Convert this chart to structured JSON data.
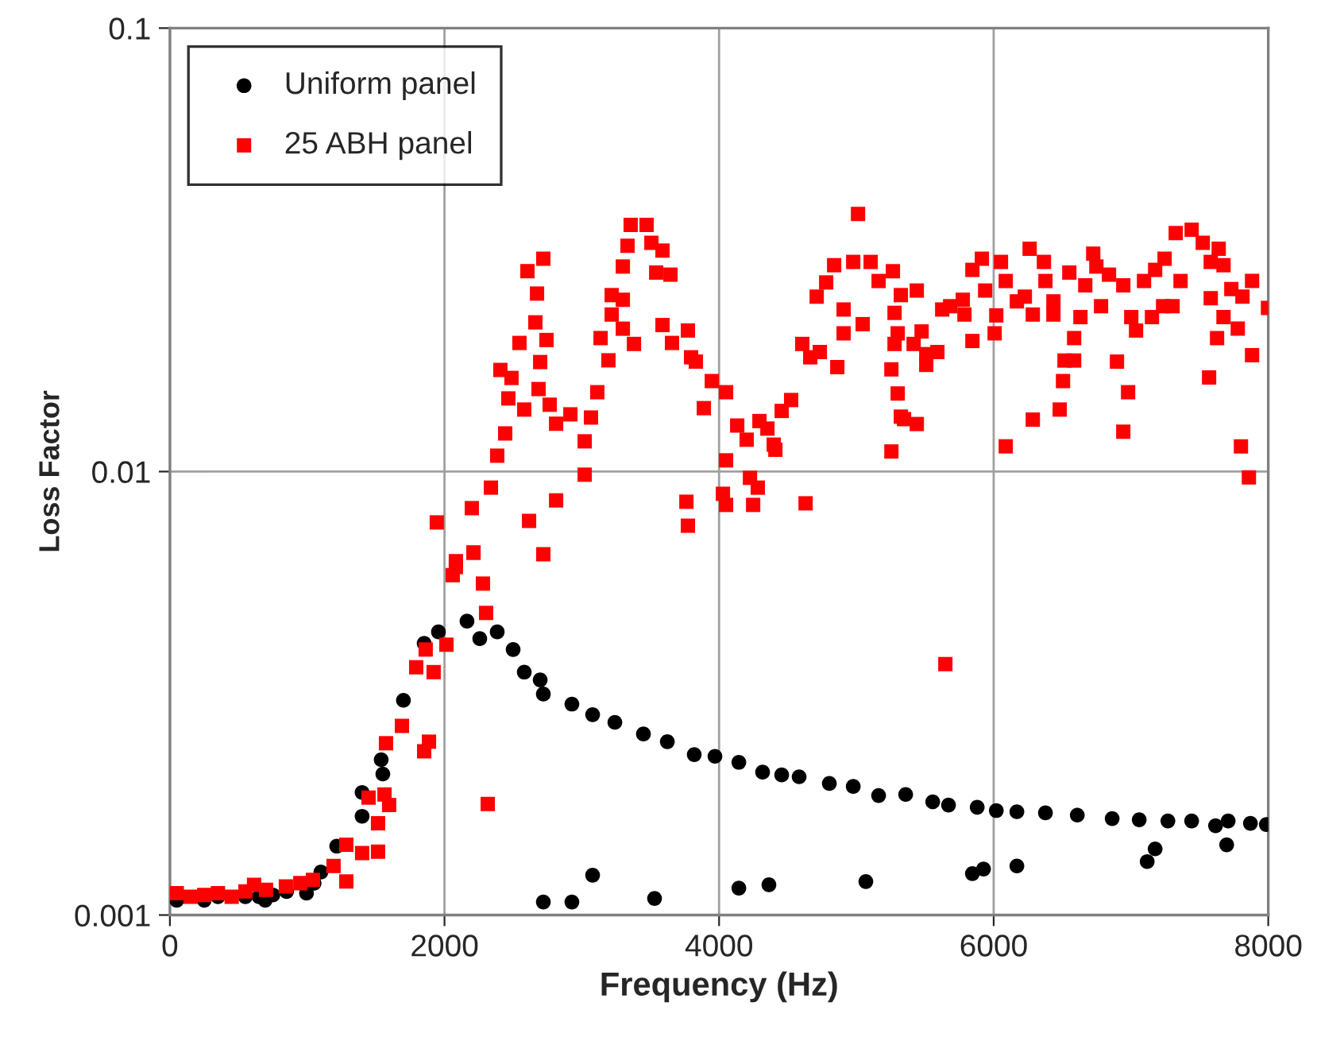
{
  "chart_data": {
    "type": "scatter",
    "xlabel": "Frequency (Hz)",
    "ylabel": "Loss Factor",
    "log": "y",
    "grid": true,
    "legend": "top left",
    "xlim": [
      0,
      8000
    ],
    "xticks": [
      0,
      2000,
      4000,
      6000,
      8000
    ],
    "ylim": [
      0.001,
      0.1
    ],
    "yticks": [
      0.001,
      0.01,
      0.1
    ],
    "series": [
      {
        "name": "Uniform panel",
        "color": "#000000",
        "marker": "circle",
        "x": [
          50,
          150,
          250,
          350,
          450,
          550,
          650,
          694,
          750,
          850,
          995,
          1050,
          1100,
          1215,
          1400,
          1400,
          1539,
          1551,
          1701,
          1852,
          1956,
          2164,
          2257,
          2384,
          2500,
          2581,
          2697,
          2720,
          2928,
          3079,
          3241,
          3449,
          3623,
          3819,
          3970,
          4144,
          4317,
          4456,
          4583,
          4803,
          4977,
          5162,
          5359,
          5556,
          5671,
          5880,
          6019,
          6169,
          6377,
          6609,
          6863,
          7060,
          7269,
          7442,
          7616,
          7708,
          7870,
          7986,
          7697,
          7176,
          7118,
          2720,
          2928,
          3079,
          3530,
          4144,
          4363,
          5069,
          5845,
          5926,
          6169
        ],
        "values": [
          0.00108,
          null,
          0.00108,
          0.0011,
          null,
          0.0011,
          0.0011,
          0.00108,
          0.00111,
          0.00113,
          0.00112,
          0.00118,
          0.00125,
          0.00143,
          0.00189,
          0.00167,
          0.00224,
          0.00208,
          0.00305,
          0.0041,
          0.00435,
          0.0046,
          0.0042,
          0.00435,
          0.00397,
          0.00353,
          0.00339,
          0.00315,
          0.00299,
          0.00283,
          0.00272,
          0.00256,
          0.00246,
          0.0023,
          0.00228,
          0.00221,
          0.0021,
          0.00207,
          0.00205,
          0.00198,
          0.00195,
          0.00186,
          0.00187,
          0.0018,
          0.00177,
          0.00175,
          0.00172,
          0.00171,
          0.0017,
          0.00168,
          0.00165,
          0.00164,
          0.00163,
          0.00163,
          0.00159,
          0.00163,
          0.00161,
          0.0016,
          0.00144,
          0.00141,
          0.00132,
          0.00107,
          0.00107,
          0.00123,
          0.00109,
          0.00115,
          0.00117,
          0.00119,
          0.00124,
          0.00127,
          0.00129
        ]
      },
      {
        "name": "25 ABH panel",
        "color": "#ff0000",
        "marker": "square",
        "x": [
          50,
          150,
          250,
          350,
          450,
          550,
          613,
          700,
          845,
          950,
          1042,
          1192,
          1285,
          1285,
          1400,
          1516,
          1447,
          1563,
          1597,
          1516,
          1574,
          1690,
          1852,
          1887,
          1794,
          1863,
          1921,
          2014,
          2315,
          2060,
          2083,
          2211,
          2280,
          2303,
          2720,
          1944,
          2083,
          2199,
          2211,
          2338,
          2384,
          2442,
          2465,
          2407,
          2488,
          2546,
          2581,
          2604,
          2720,
          2674,
          2662,
          2743,
          2697,
          2685,
          2766,
          2813,
          2917,
          2616,
          2813,
          3021,
          3021,
          3067,
          3113,
          3194,
          3137,
          3218,
          3218,
          3299,
          3299,
          3299,
          3380,
          3356,
          3472,
          3507,
          3333,
          3588,
          3542,
          3646,
          3588,
          3657,
          3773,
          3796,
          3831,
          3947,
          4051,
          3889,
          3762,
          3773,
          4051,
          4132,
          4201,
          4028,
          4051,
          4225,
          4282,
          4248,
          4294,
          4352,
          4398,
          4410,
          4456,
          4525,
          4630,
          4606,
          4664,
          4734,
          4861,
          4711,
          4780,
          4838,
          4907,
          4907,
          5046,
          4977,
          5012,
          5104,
          5162,
          5266,
          5278,
          5278,
          5255,
          5301,
          5255,
          5324,
          5440,
          5324,
          5301,
          5347,
          5440,
          5475,
          5417,
          5509,
          5590,
          5509,
          5625,
          5683,
          5787,
          5775,
          5845,
          5845,
          5914,
          5938,
          6019,
          6007,
          6088,
          6053,
          6088,
          6169,
          6227,
          6285,
          6262,
          6366,
          6377,
          6285,
          6435,
          6435,
          6481,
          6505,
          6516,
          6586,
          6586,
          6551,
          6632,
          6667,
          6725,
          6748,
          6782,
          6840,
          6944,
          6898,
          6979,
          6944,
          7002,
          7037,
          7095,
          7176,
          7153,
          7234,
          7303,
          7245,
          7326,
          7442,
          7523,
          7581,
          7639,
          7674,
          7361,
          7581,
          7674,
          7778,
          7627,
          7569,
          7731,
          7812,
          7882,
          7882,
          7801,
          7859,
          7998,
          5648
        ],
        "values": [
          0.00112,
          0.0011,
          0.00111,
          0.00112,
          0.0011,
          0.00113,
          0.00117,
          0.00114,
          0.00116,
          0.00118,
          0.0012,
          0.00129,
          0.00119,
          0.00144,
          0.00138,
          0.00139,
          0.00184,
          0.00187,
          0.00177,
          0.00161,
          0.00244,
          0.00267,
          0.00234,
          0.00246,
          0.00362,
          0.00397,
          0.00353,
          0.00407,
          0.00178,
          0.00584,
          0.00628,
          0.00656,
          0.00559,
          0.0048,
          0.00651,
          0.00768,
          0.00609,
          0.00827,
          0.00657,
          0.0092,
          0.01086,
          0.01219,
          0.01462,
          0.01695,
          0.01626,
          0.0195,
          0.0138,
          0.02831,
          0.0302,
          0.0252,
          0.0217,
          0.0198,
          0.01766,
          0.01535,
          0.01415,
          0.01282,
          0.01346,
          0.00774,
          0.00861,
          0.00984,
          0.0117,
          0.01324,
          0.0151,
          0.01782,
          0.02,
          0.0226,
          0.025,
          0.0244,
          0.021,
          0.029,
          0.0194,
          0.036,
          0.036,
          0.0328,
          0.0323,
          0.0315,
          0.0281,
          0.0278,
          0.0214,
          0.0195,
          0.0208,
          0.0181,
          0.0177,
          0.016,
          0.0151,
          0.0139,
          0.00855,
          0.00755,
          0.0106,
          0.0127,
          0.0118,
          0.00891,
          0.00841,
          0.00968,
          0.0092,
          0.00841,
          0.013,
          0.0125,
          0.0115,
          0.0112,
          0.0137,
          0.0145,
          0.00848,
          0.0194,
          0.0181,
          0.0186,
          0.0172,
          0.0248,
          0.0267,
          0.0292,
          0.0232,
          0.0205,
          0.0215,
          0.0297,
          0.0381,
          0.0297,
          0.0269,
          0.0283,
          0.0228,
          0.0194,
          0.017,
          0.015,
          0.0111,
          0.0133,
          0.0256,
          0.025,
          0.0205,
          0.01313,
          0.0128,
          0.0207,
          0.0194,
          0.0184,
          0.0186,
          0.0174,
          0.0232,
          0.0236,
          0.0226,
          0.0244,
          0.0197,
          0.0285,
          0.0302,
          0.0256,
          0.0225,
          0.0205,
          0.0114,
          0.0297,
          0.0269,
          0.0242,
          0.0248,
          0.0226,
          0.0318,
          0.0297,
          0.0269,
          0.0131,
          0.0242,
          0.0226,
          0.0138,
          0.016,
          0.0178,
          0.0178,
          0.02,
          0.0281,
          0.0223,
          0.0263,
          0.031,
          0.029,
          0.0236,
          0.0278,
          0.0263,
          0.0177,
          0.0151,
          0.0123,
          0.0223,
          0.0208,
          0.0269,
          0.0285,
          0.0223,
          0.0236,
          0.0236,
          0.0302,
          0.0345,
          0.0351,
          0.0328,
          0.0297,
          0.0318,
          0.0292,
          0.0269,
          0.0246,
          0.0223,
          0.021,
          0.02,
          0.0163,
          0.0258,
          0.0248,
          0.0269,
          0.0183,
          0.0114,
          0.0097,
          0.0234,
          0.00368
        ]
      }
    ]
  }
}
